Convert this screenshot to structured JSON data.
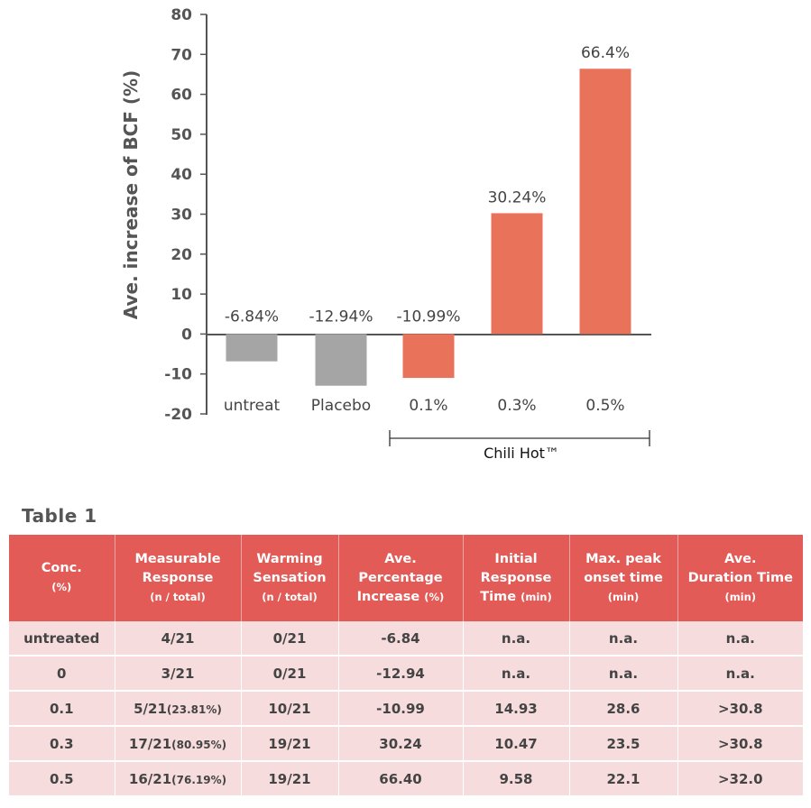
{
  "chart_data": {
    "type": "bar",
    "ylabel": "Ave. increase of BCF (%)",
    "ylim": [
      -20,
      80
    ],
    "yticks": [
      80,
      70,
      60,
      50,
      40,
      30,
      20,
      10,
      0,
      -10,
      -20
    ],
    "categories": [
      "untreat",
      "Placebo",
      "0.1%",
      "0.3%",
      "0.5%"
    ],
    "values": [
      -6.84,
      -12.94,
      -10.99,
      30.24,
      66.4
    ],
    "data_labels": [
      "-6.84%",
      "-12.94%",
      "-10.99%",
      "30.24%",
      "66.4%"
    ],
    "colors": [
      "#a5a5a5",
      "#a5a5a5",
      "#e8735a",
      "#e8735a",
      "#e8735a"
    ],
    "group_label": "Chili Hot™",
    "group_categories": [
      "0.1%",
      "0.3%",
      "0.5%"
    ],
    "grid": false
  },
  "table": {
    "title": "Table 1",
    "headers": [
      {
        "lines": [
          "Conc."
        ],
        "unit": "(%)"
      },
      {
        "lines": [
          "Measurable",
          "Response"
        ],
        "unit": "(n / total)"
      },
      {
        "lines": [
          "Warming",
          "Sensation"
        ],
        "unit": "(n / total)"
      },
      {
        "lines": [
          "Ave.",
          "Percentage",
          "Increase"
        ],
        "unit": "(%)"
      },
      {
        "lines": [
          "Initial",
          "Response",
          "Time"
        ],
        "unit": "(min)"
      },
      {
        "lines": [
          "Max. peak",
          "onset time"
        ],
        "unit": "(min)"
      },
      {
        "lines": [
          "Ave.",
          "Duration Time"
        ],
        "unit": "(min)"
      }
    ],
    "rows": [
      [
        {
          "v": "untreated"
        },
        {
          "v": "4/21"
        },
        {
          "v": "0/21"
        },
        {
          "v": "-6.84"
        },
        {
          "v": "n.a."
        },
        {
          "v": "n.a."
        },
        {
          "v": "n.a."
        }
      ],
      [
        {
          "v": "0"
        },
        {
          "v": "3/21"
        },
        {
          "v": "0/21"
        },
        {
          "v": "-12.94"
        },
        {
          "v": "n.a."
        },
        {
          "v": "n.a."
        },
        {
          "v": "n.a."
        }
      ],
      [
        {
          "v": "0.1"
        },
        {
          "v": "5/21",
          "p": "(23.81%)"
        },
        {
          "v": "10/21"
        },
        {
          "v": "-10.99"
        },
        {
          "v": "14.93"
        },
        {
          "v": "28.6"
        },
        {
          "v": ">30.8"
        }
      ],
      [
        {
          "v": "0.3"
        },
        {
          "v": "17/21",
          "p": "(80.95%)"
        },
        {
          "v": "19/21"
        },
        {
          "v": "30.24"
        },
        {
          "v": "10.47"
        },
        {
          "v": "23.5"
        },
        {
          "v": ">30.8"
        }
      ],
      [
        {
          "v": "0.5"
        },
        {
          "v": "16/21",
          "p": "(76.19%)"
        },
        {
          "v": "19/21"
        },
        {
          "v": "66.40"
        },
        {
          "v": "9.58"
        },
        {
          "v": "22.1"
        },
        {
          "v": ">32.0"
        }
      ]
    ]
  }
}
